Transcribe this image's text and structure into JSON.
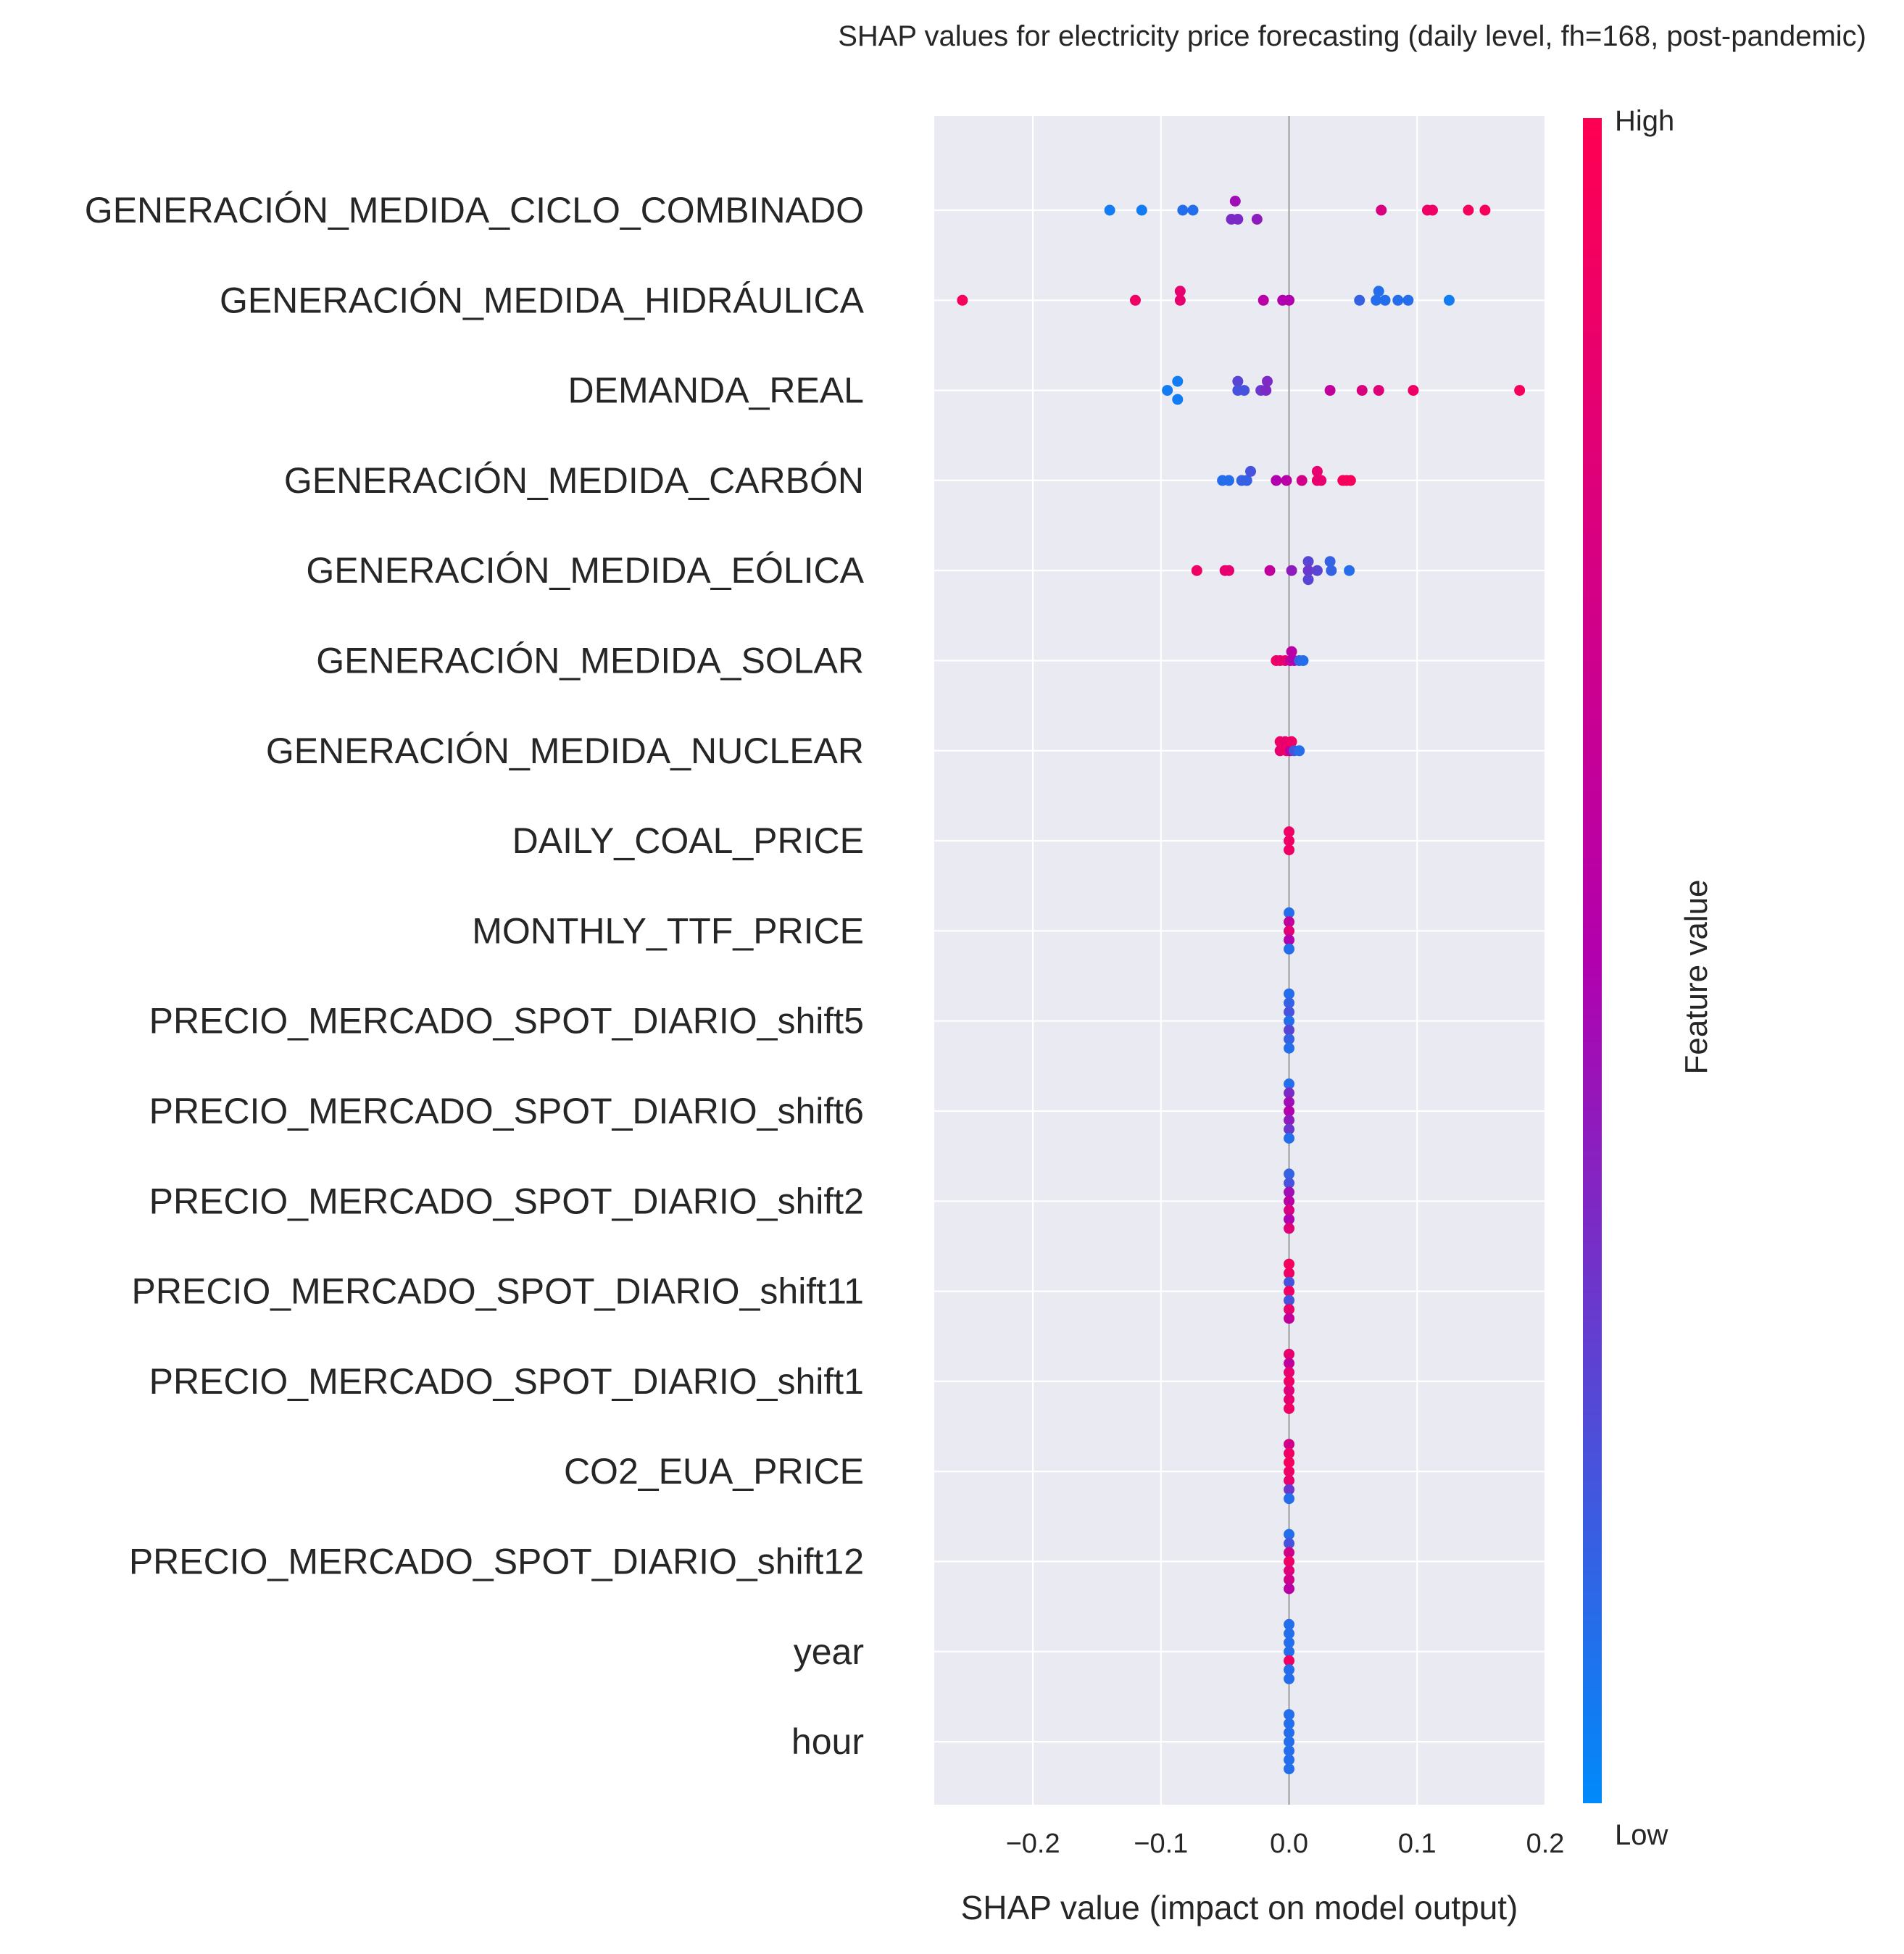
{
  "chart_data": {
    "type": "scatter",
    "subtype": "beeswarm",
    "title": "SHAP values for electricity price forecasting (daily level, fh=168, post-pandemic)",
    "xlabel": "SHAP value (impact on model output)",
    "ylabel": "",
    "xlim": [
      -0.277,
      0.2
    ],
    "xticks": [
      -0.2,
      -0.1,
      0.0,
      0.1,
      0.2
    ],
    "xtick_labels": [
      "−0.2",
      "−0.1",
      "0.0",
      "0.1",
      "0.2"
    ],
    "grid": true,
    "background": "#EAEAF2",
    "colorbar": {
      "label": "Feature value",
      "high_label": "High",
      "low_label": "Low",
      "low_color": "#008AFA",
      "mid_color": "#B200AE",
      "high_color": "#FF0052"
    },
    "features": [
      {
        "name": "GENERACIÓN_MEDIDA_CICLO_COMBINADO",
        "points": [
          [
            -0.14,
            0.05,
            0
          ],
          [
            -0.115,
            0.05,
            0
          ],
          [
            -0.083,
            0.1,
            0
          ],
          [
            -0.075,
            0.1,
            0
          ],
          [
            -0.045,
            0.35,
            1
          ],
          [
            -0.04,
            0.35,
            1
          ],
          [
            -0.025,
            0.4,
            1
          ],
          [
            -0.042,
            0.45,
            -1
          ],
          [
            0.072,
            0.75,
            0
          ],
          [
            0.108,
            0.9,
            0
          ],
          [
            0.112,
            0.9,
            0
          ],
          [
            0.14,
            0.95,
            0
          ],
          [
            0.153,
            0.95,
            0
          ]
        ]
      },
      {
        "name": "GENERACIÓN_MEDIDA_HIDRÁULICA",
        "points": [
          [
            -0.255,
            0.95,
            0
          ],
          [
            -0.12,
            0.9,
            0
          ],
          [
            -0.085,
            0.85,
            0
          ],
          [
            -0.085,
            0.85,
            -1
          ],
          [
            -0.02,
            0.55,
            0
          ],
          [
            -0.005,
            0.5,
            0
          ],
          [
            0.0,
            0.5,
            0
          ],
          [
            0.055,
            0.15,
            0
          ],
          [
            0.068,
            0.1,
            0
          ],
          [
            0.07,
            0.1,
            -1
          ],
          [
            0.075,
            0.1,
            0
          ],
          [
            0.085,
            0.1,
            0
          ],
          [
            0.093,
            0.1,
            0
          ],
          [
            0.125,
            0.05,
            0
          ]
        ]
      },
      {
        "name": "DEMANDA_REAL",
        "points": [
          [
            -0.095,
            0.05,
            0
          ],
          [
            -0.087,
            0.05,
            1
          ],
          [
            -0.087,
            0.05,
            -1
          ],
          [
            -0.04,
            0.25,
            -1
          ],
          [
            -0.04,
            0.2,
            0
          ],
          [
            -0.035,
            0.2,
            0
          ],
          [
            -0.022,
            0.3,
            0
          ],
          [
            -0.018,
            0.35,
            0
          ],
          [
            -0.017,
            0.35,
            -1
          ],
          [
            0.032,
            0.6,
            0
          ],
          [
            0.057,
            0.75,
            0
          ],
          [
            0.07,
            0.8,
            0
          ],
          [
            0.097,
            0.9,
            0
          ],
          [
            0.18,
            0.95,
            0
          ]
        ]
      },
      {
        "name": "GENERACIÓN_MEDIDA_CARBÓN",
        "points": [
          [
            -0.052,
            0.1,
            0
          ],
          [
            -0.047,
            0.1,
            0
          ],
          [
            -0.037,
            0.15,
            0
          ],
          [
            -0.033,
            0.15,
            0
          ],
          [
            -0.03,
            0.2,
            -1
          ],
          [
            -0.01,
            0.5,
            0
          ],
          [
            -0.002,
            0.55,
            0
          ],
          [
            0.01,
            0.7,
            0
          ],
          [
            0.022,
            0.85,
            -1
          ],
          [
            0.022,
            0.85,
            0
          ],
          [
            0.025,
            0.85,
            0
          ],
          [
            0.042,
            0.95,
            0
          ],
          [
            0.045,
            0.95,
            0
          ],
          [
            0.048,
            0.95,
            0
          ]
        ]
      },
      {
        "name": "GENERACIÓN_MEDIDA_EÓLICA",
        "points": [
          [
            -0.072,
            0.9,
            0
          ],
          [
            -0.05,
            0.85,
            0
          ],
          [
            -0.047,
            0.85,
            0
          ],
          [
            -0.015,
            0.6,
            0
          ],
          [
            0.002,
            0.4,
            0
          ],
          [
            0.015,
            0.25,
            -1
          ],
          [
            0.015,
            0.3,
            0
          ],
          [
            0.015,
            0.25,
            1
          ],
          [
            0.022,
            0.25,
            0
          ],
          [
            0.032,
            0.15,
            -1
          ],
          [
            0.033,
            0.15,
            0
          ],
          [
            0.047,
            0.1,
            0
          ]
        ]
      },
      {
        "name": "GENERACIÓN_MEDIDA_SOLAR",
        "points": [
          [
            -0.01,
            0.9,
            0
          ],
          [
            -0.007,
            0.85,
            0
          ],
          [
            -0.003,
            0.85,
            0
          ],
          [
            0.001,
            0.6,
            0
          ],
          [
            0.002,
            0.55,
            -1
          ],
          [
            0.004,
            0.5,
            0
          ],
          [
            0.008,
            0.15,
            0
          ],
          [
            0.011,
            0.1,
            0
          ]
        ]
      },
      {
        "name": "GENERACIÓN_MEDIDA_NUCLEAR",
        "points": [
          [
            -0.007,
            0.9,
            -1
          ],
          [
            -0.007,
            0.85,
            0
          ],
          [
            -0.003,
            0.85,
            -1
          ],
          [
            -0.002,
            0.9,
            0
          ],
          [
            0.001,
            0.55,
            0
          ],
          [
            0.002,
            0.9,
            -1
          ],
          [
            0.004,
            0.2,
            0
          ],
          [
            0.008,
            0.1,
            0
          ]
        ]
      },
      {
        "name": "DAILY_COAL_PRICE",
        "points": [
          [
            0.0,
            0.9,
            -1
          ],
          [
            0.0,
            0.9,
            0
          ],
          [
            0.0,
            0.9,
            1
          ]
        ]
      },
      {
        "name": "MONTHLY_TTF_PRICE",
        "points": [
          [
            0.0,
            0.1,
            -2
          ],
          [
            0.0,
            0.6,
            -1
          ],
          [
            0.0,
            0.8,
            0
          ],
          [
            0.0,
            0.5,
            1
          ],
          [
            0.0,
            0.1,
            2
          ]
        ]
      },
      {
        "name": "PRECIO_MERCADO_SPOT_DIARIO_shift5",
        "points": [
          [
            0.0,
            0.1,
            -3
          ],
          [
            0.0,
            0.15,
            -2
          ],
          [
            0.0,
            0.2,
            -1
          ],
          [
            0.0,
            0.1,
            0
          ],
          [
            0.0,
            0.25,
            1
          ],
          [
            0.0,
            0.15,
            2
          ],
          [
            0.0,
            0.1,
            3
          ]
        ]
      },
      {
        "name": "PRECIO_MERCADO_SPOT_DIARIO_shift6",
        "points": [
          [
            0.0,
            0.1,
            -3
          ],
          [
            0.0,
            0.35,
            -2
          ],
          [
            0.0,
            0.45,
            -1
          ],
          [
            0.0,
            0.5,
            0
          ],
          [
            0.0,
            0.4,
            1
          ],
          [
            0.0,
            0.3,
            2
          ],
          [
            0.0,
            0.1,
            3
          ]
        ]
      },
      {
        "name": "PRECIO_MERCADO_SPOT_DIARIO_shift2",
        "points": [
          [
            0.0,
            0.15,
            -3
          ],
          [
            0.0,
            0.2,
            -2
          ],
          [
            0.0,
            0.45,
            -1
          ],
          [
            0.0,
            0.55,
            0
          ],
          [
            0.0,
            0.75,
            1
          ],
          [
            0.0,
            0.5,
            2
          ],
          [
            0.0,
            0.8,
            3
          ]
        ]
      },
      {
        "name": "PRECIO_MERCADO_SPOT_DIARIO_shift11",
        "points": [
          [
            0.0,
            0.95,
            -3
          ],
          [
            0.0,
            0.9,
            -2
          ],
          [
            0.0,
            0.2,
            -1
          ],
          [
            0.0,
            0.9,
            0
          ],
          [
            0.0,
            0.2,
            1
          ],
          [
            0.0,
            0.85,
            2
          ],
          [
            0.0,
            0.6,
            3
          ]
        ]
      },
      {
        "name": "PRECIO_MERCADO_SPOT_DIARIO_shift1",
        "points": [
          [
            0.0,
            0.85,
            -3
          ],
          [
            0.0,
            0.6,
            -2
          ],
          [
            0.0,
            0.85,
            -1
          ],
          [
            0.0,
            0.9,
            0
          ],
          [
            0.0,
            0.8,
            1
          ],
          [
            0.0,
            0.85,
            2
          ],
          [
            0.0,
            0.9,
            3
          ]
        ]
      },
      {
        "name": "CO2_EUA_PRICE",
        "points": [
          [
            0.0,
            0.7,
            -3
          ],
          [
            0.0,
            0.9,
            -2
          ],
          [
            0.0,
            0.95,
            -1
          ],
          [
            0.0,
            0.9,
            0
          ],
          [
            0.0,
            0.85,
            1
          ],
          [
            0.0,
            0.3,
            2
          ],
          [
            0.0,
            0.1,
            3
          ]
        ]
      },
      {
        "name": "PRECIO_MERCADO_SPOT_DIARIO_shift12",
        "points": [
          [
            0.0,
            0.1,
            -3
          ],
          [
            0.0,
            0.2,
            -2
          ],
          [
            0.0,
            0.7,
            -1
          ],
          [
            0.0,
            0.9,
            0
          ],
          [
            0.0,
            0.8,
            1
          ],
          [
            0.0,
            0.7,
            2
          ],
          [
            0.0,
            0.55,
            3
          ]
        ]
      },
      {
        "name": "year",
        "points": [
          [
            0.0,
            0.1,
            -3
          ],
          [
            0.0,
            0.1,
            -2
          ],
          [
            0.0,
            0.1,
            -1
          ],
          [
            0.0,
            0.1,
            0
          ],
          [
            0.0,
            0.9,
            1
          ],
          [
            0.0,
            0.1,
            2
          ],
          [
            0.0,
            0.1,
            3
          ]
        ]
      },
      {
        "name": "hour",
        "points": [
          [
            0.0,
            0.1,
            -3
          ],
          [
            0.0,
            0.1,
            -2
          ],
          [
            0.0,
            0.1,
            -1
          ],
          [
            0.0,
            0.1,
            0
          ],
          [
            0.0,
            0.1,
            1
          ],
          [
            0.0,
            0.1,
            2
          ],
          [
            0.0,
            0.1,
            3
          ]
        ]
      }
    ]
  }
}
